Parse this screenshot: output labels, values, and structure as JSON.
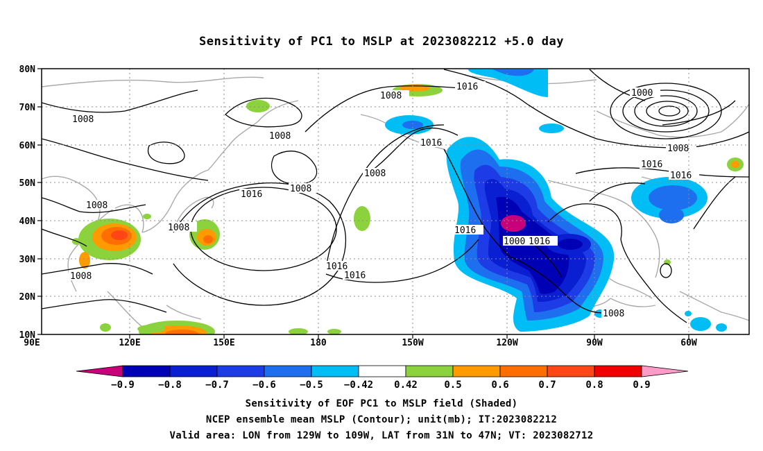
{
  "title": "Sensitivity of PC1 to MSLP at 2023082212 +5.0 day",
  "map": {
    "lat_labels": [
      "80N",
      "70N",
      "60N",
      "50N",
      "40N",
      "30N",
      "20N",
      "10N"
    ],
    "lon_labels": [
      "90E",
      "120E",
      "150E",
      "180",
      "150W",
      "120W",
      "90W",
      "60W"
    ],
    "contour_labels": [
      "1008",
      "1016",
      "1000"
    ],
    "shading_colors": {
      "neg_extreme": "#c8007a",
      "neg_09": "#0000b4",
      "neg_08": "#0a1ed2",
      "neg_07": "#1e3ce6",
      "neg_06": "#1e6ef0",
      "neg_05": "#00bef5",
      "pos_042": "#8cd23c",
      "pos_05": "#ff9b00",
      "pos_06": "#ff6e00",
      "pos_07": "#ff4614",
      "pos_08": "#f00000",
      "pos_extreme": "#ff9bc8"
    }
  },
  "colorbar": {
    "labels": [
      "−0.9",
      "−0.8",
      "−0.7",
      "−0.6",
      "−0.5",
      "−0.42",
      "0.42",
      "0.5",
      "0.6",
      "0.7",
      "0.8",
      "0.9"
    ]
  },
  "caption": {
    "line1": "Sensitivity of EOF PC1 to MSLP field (Shaded)",
    "line2": "NCEP ensemble mean MSLP (Contour); unit(mb); IT:2023082212",
    "line3": "Valid area: LON from 129W to 109W, LAT from 31N to 47N; VT: 2023082712"
  }
}
